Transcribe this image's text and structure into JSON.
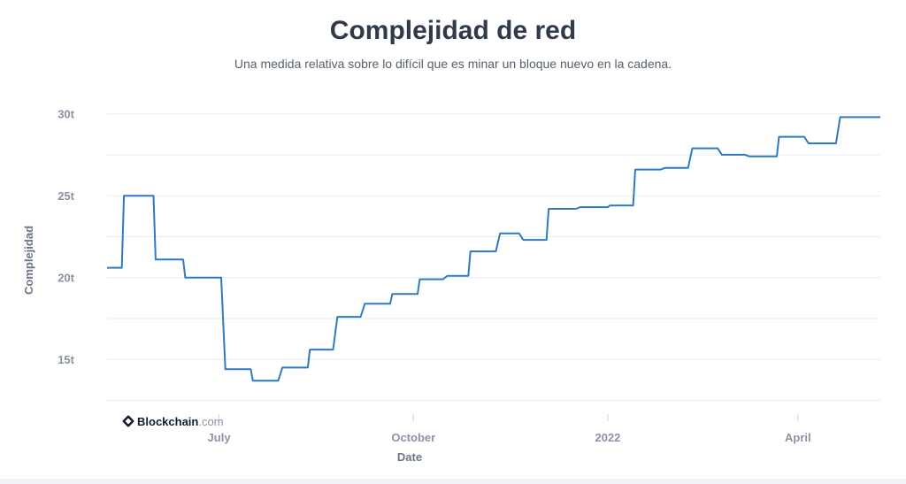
{
  "title": "Complejidad de red",
  "subtitle": "Una medida relativa sobre lo difícil que es minar un bloque nuevo en la cadena.",
  "brand": {
    "name": "Blockchain",
    "suffix": ".com",
    "icon": "blockchain-logo-icon",
    "color": "#121d33"
  },
  "colors": {
    "line": "#2e7bc4",
    "grid": "#e8ebf0",
    "text": "#2f3a4a"
  },
  "chart_data": {
    "type": "line",
    "title": "Complejidad de red",
    "subtitle": "Una medida relativa sobre lo difícil que es minar un bloque nuevo en la cadena.",
    "xlabel": "Date",
    "ylabel": "Complejidad",
    "x_ticks": [
      "July",
      "October",
      "2022",
      "April"
    ],
    "x_tick_dates": [
      "2021-07-01",
      "2021-10-01",
      "2022-01-01",
      "2022-04-01"
    ],
    "y_ticks": [
      15,
      20,
      25,
      30
    ],
    "y_tick_labels": [
      "15t",
      "20t",
      "25t",
      "30t"
    ],
    "ylim": [
      12.2,
      30.2
    ],
    "xlim": [
      "2021-05-09",
      "2022-05-10"
    ],
    "grid": true,
    "series": [
      {
        "values": [
          [
            "2021-05-09",
            20.6
          ],
          [
            "2021-05-16",
            20.6
          ],
          [
            "2021-05-17",
            25.0
          ],
          [
            "2021-05-31",
            25.0
          ],
          [
            "2021-06-01",
            21.1
          ],
          [
            "2021-06-14",
            21.1
          ],
          [
            "2021-06-15",
            20.0
          ],
          [
            "2021-07-02",
            20.0
          ],
          [
            "2021-07-04",
            14.4
          ],
          [
            "2021-07-16",
            14.4
          ],
          [
            "2021-07-17",
            13.7
          ],
          [
            "2021-07-29",
            13.7
          ],
          [
            "2021-07-31",
            14.5
          ],
          [
            "2021-08-12",
            14.5
          ],
          [
            "2021-08-13",
            15.6
          ],
          [
            "2021-08-24",
            15.6
          ],
          [
            "2021-08-26",
            17.6
          ],
          [
            "2021-09-06",
            17.6
          ],
          [
            "2021-09-08",
            18.4
          ],
          [
            "2021-09-20",
            18.4
          ],
          [
            "2021-09-21",
            19.0
          ],
          [
            "2021-10-03",
            19.0
          ],
          [
            "2021-10-04",
            19.9
          ],
          [
            "2021-10-15",
            19.9
          ],
          [
            "2021-10-17",
            20.1
          ],
          [
            "2021-10-27",
            20.1
          ],
          [
            "2021-10-28",
            21.6
          ],
          [
            "2021-11-09",
            21.6
          ],
          [
            "2021-11-11",
            22.7
          ],
          [
            "2021-11-20",
            22.7
          ],
          [
            "2021-11-22",
            22.3
          ],
          [
            "2021-12-03",
            22.3
          ],
          [
            "2021-12-04",
            24.2
          ],
          [
            "2021-12-17",
            24.2
          ],
          [
            "2021-12-19",
            24.3
          ],
          [
            "2022-01-01",
            24.3
          ],
          [
            "2022-01-02",
            24.4
          ],
          [
            "2022-01-13",
            24.4
          ],
          [
            "2022-01-14",
            26.6
          ],
          [
            "2022-01-26",
            26.6
          ],
          [
            "2022-01-28",
            26.7
          ],
          [
            "2022-02-08",
            26.7
          ],
          [
            "2022-02-10",
            27.9
          ],
          [
            "2022-02-22",
            27.9
          ],
          [
            "2022-02-24",
            27.5
          ],
          [
            "2022-03-07",
            27.5
          ],
          [
            "2022-03-09",
            27.4
          ],
          [
            "2022-03-22",
            27.4
          ],
          [
            "2022-03-23",
            28.6
          ],
          [
            "2022-04-04",
            28.6
          ],
          [
            "2022-04-06",
            28.2
          ],
          [
            "2022-04-19",
            28.2
          ],
          [
            "2022-04-21",
            29.8
          ],
          [
            "2022-05-10",
            29.8
          ]
        ]
      }
    ]
  }
}
